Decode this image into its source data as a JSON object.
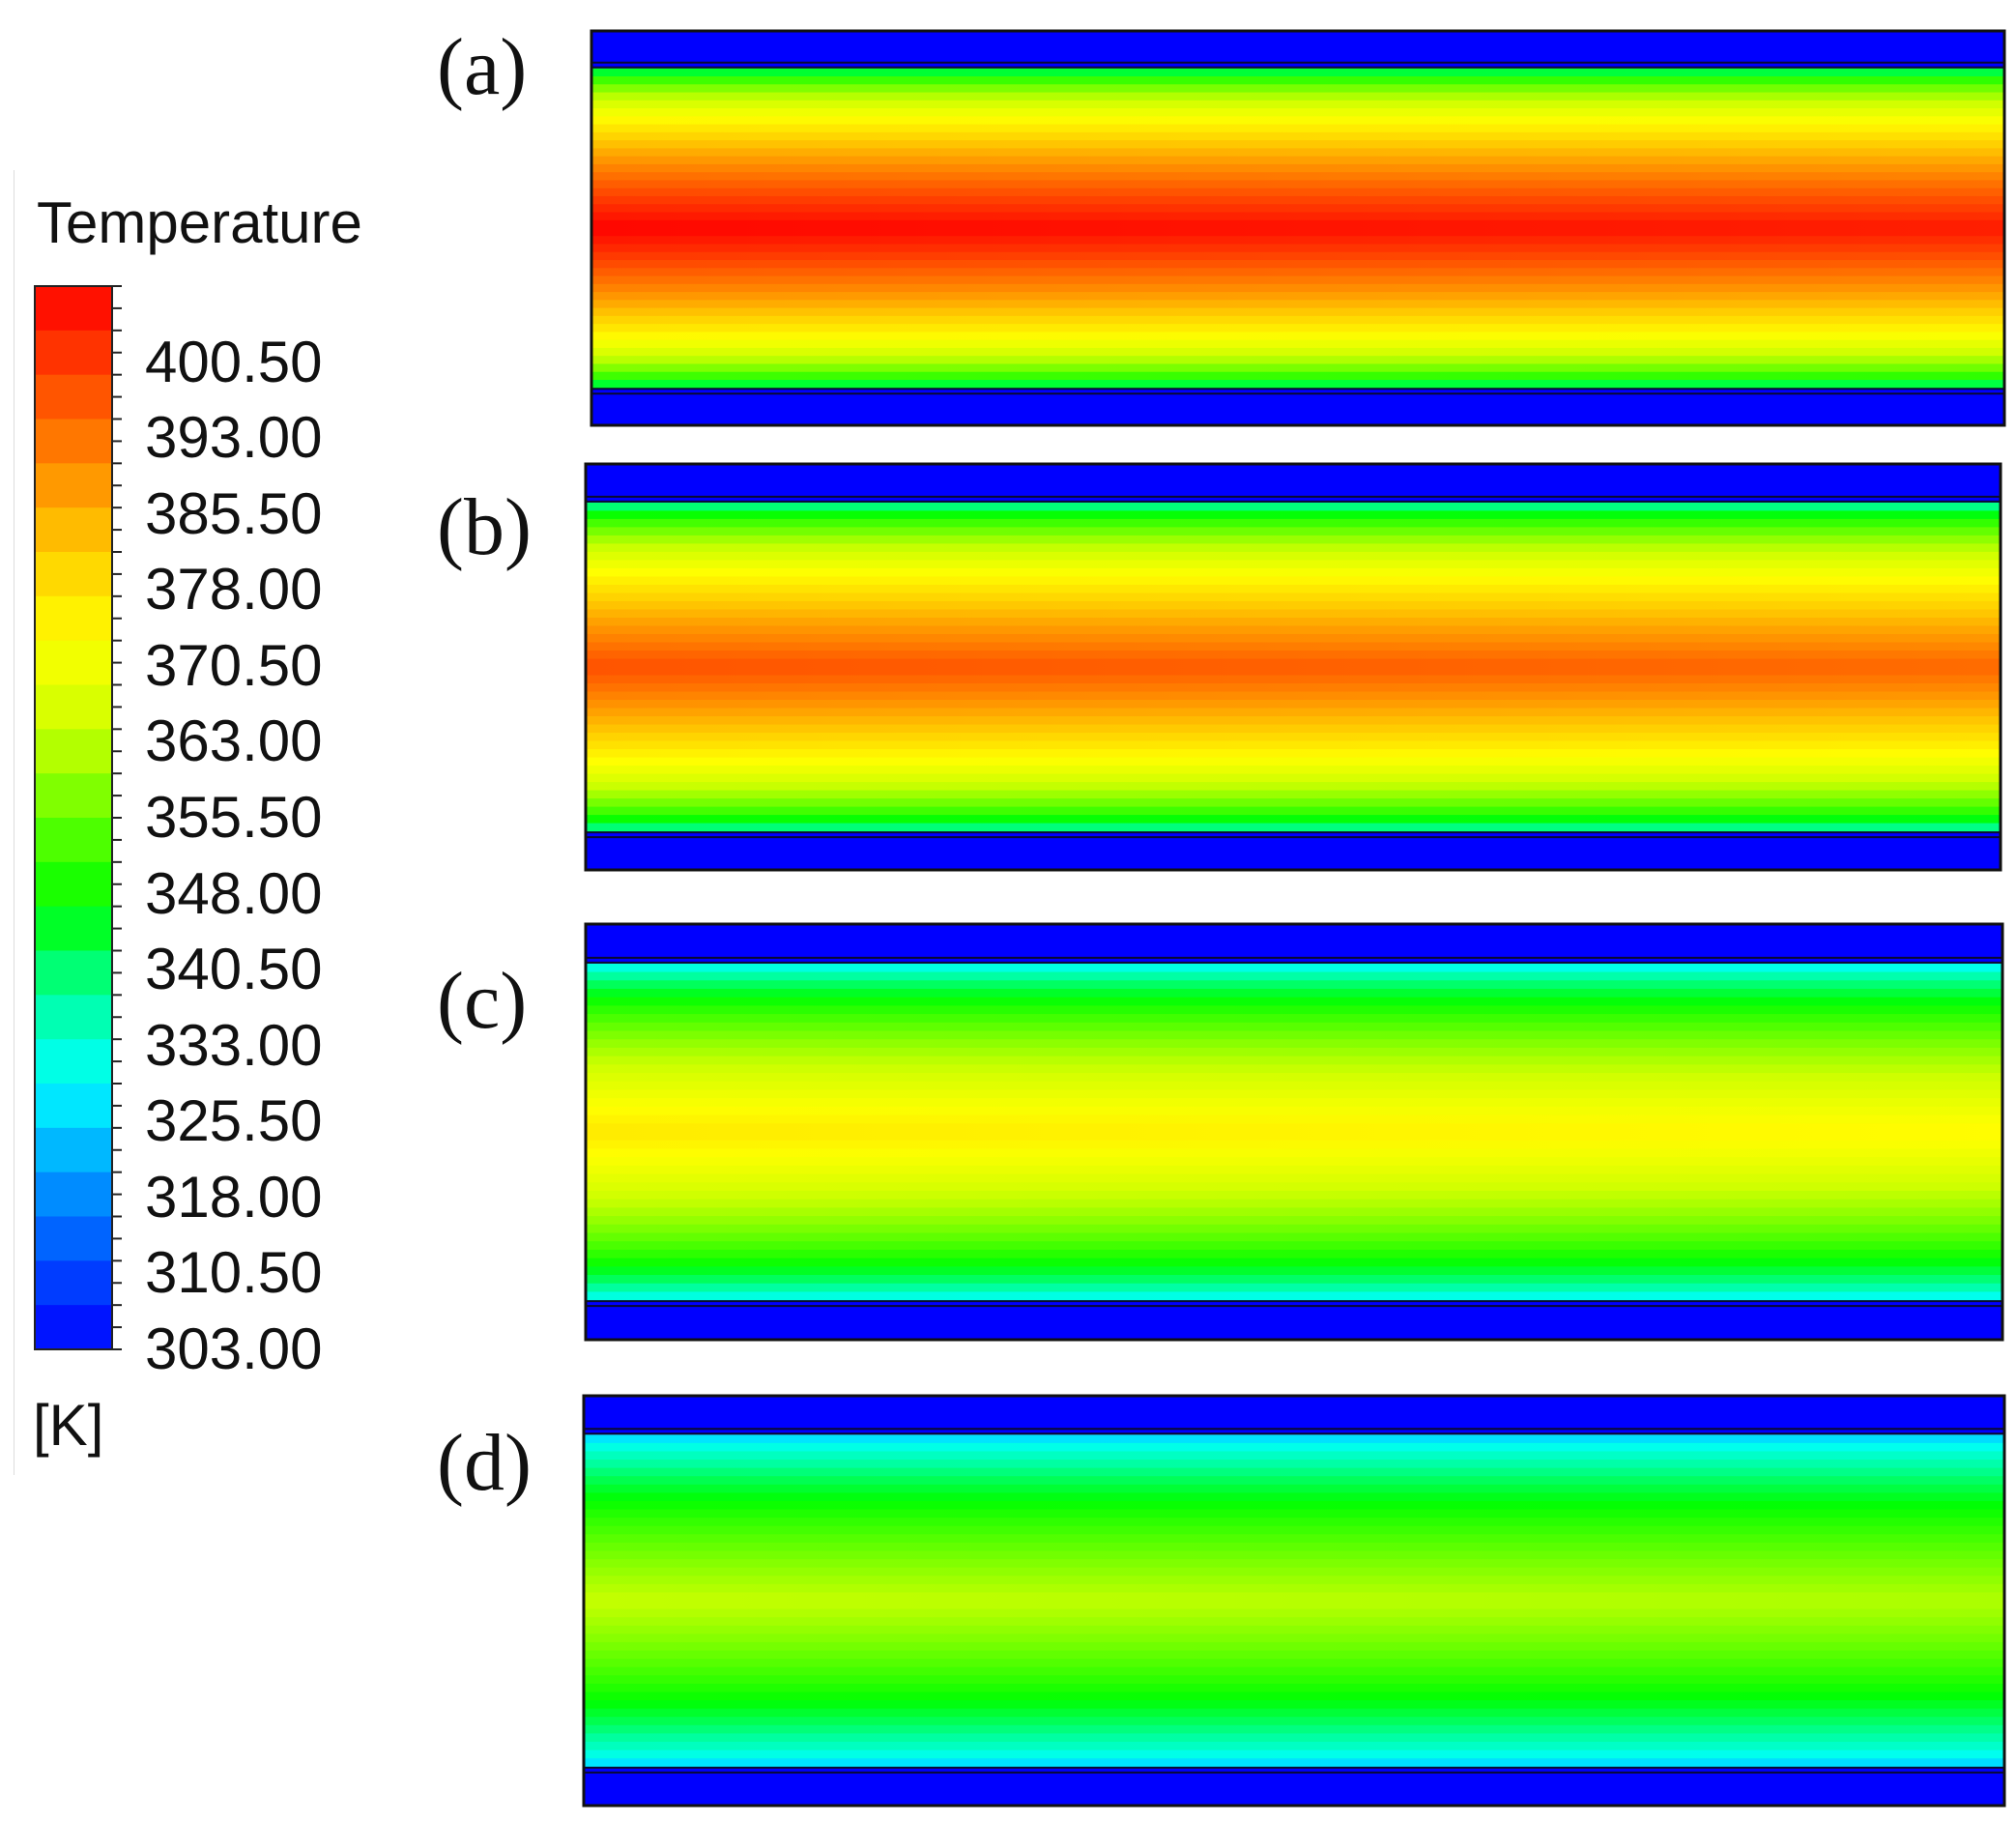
{
  "chart_data": {
    "type": "heatmap",
    "legend": {
      "title": "Temperature",
      "unit": "[K]",
      "min": 303.0,
      "max": 408.0,
      "tick_labels": [
        "400.50",
        "393.00",
        "385.50",
        "378.00",
        "370.50",
        "363.00",
        "355.50",
        "348.00",
        "340.50",
        "333.00",
        "325.50",
        "318.00",
        "310.50",
        "303.00"
      ],
      "tick_values": [
        400.5,
        393.0,
        385.5,
        378.0,
        370.5,
        363.0,
        355.5,
        348.0,
        340.5,
        333.0,
        325.5,
        318.0,
        310.5,
        303.0
      ],
      "colormap": [
        "#0000ff",
        "#0050ff",
        "#00a0ff",
        "#00ffff",
        "#00ff9a",
        "#00ff00",
        "#66ff00",
        "#ccff00",
        "#ffff00",
        "#ffcc00",
        "#ff8800",
        "#ff4400",
        "#ff0000"
      ]
    },
    "panels": [
      {
        "label": "(a)",
        "wall_temperature": 303.0,
        "core_temperature_inlet": 408.0,
        "core_temperature_outlet": 405.0
      },
      {
        "label": "(b)",
        "wall_temperature": 303.0,
        "core_temperature_inlet": 398.0,
        "core_temperature_outlet": 395.0
      },
      {
        "label": "(c)",
        "wall_temperature": 303.0,
        "core_temperature_inlet": 377.0,
        "core_temperature_outlet": 374.0
      },
      {
        "label": "(d)",
        "wall_temperature": 303.0,
        "core_temperature_inlet": 364.0,
        "core_temperature_outlet": 362.0
      }
    ]
  }
}
